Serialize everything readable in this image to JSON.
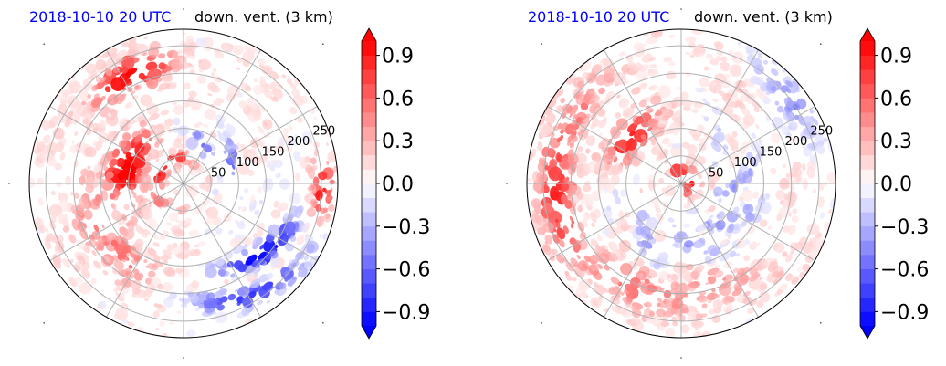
{
  "panels": [
    {
      "time_label": "2018-10-10 20 UTC",
      "variable_label": "down. vent. (3 km)",
      "pattern": "left"
    },
    {
      "time_label": "2018-10-10 20 UTC",
      "variable_label": "down. vent. (3 km)",
      "pattern": "right"
    }
  ],
  "chart_data": [
    {
      "type": "heatmap",
      "projection": "polar",
      "title": "2018-10-10 20 UTC down. vent. (3 km)",
      "radial_ticks": [
        50,
        100,
        150,
        200,
        250
      ],
      "radial_max": 280,
      "angular_gridlines_deg": [
        0,
        30,
        60,
        90,
        120,
        150,
        180,
        210,
        240,
        270,
        300,
        330
      ],
      "colorbar": {
        "ticks": [
          -0.9,
          -0.6,
          -0.3,
          0.0,
          0.3,
          0.6,
          0.9
        ],
        "tick_labels": [
          "−0.9",
          "−0.6",
          "−0.3",
          "0.0",
          "0.3",
          "0.6",
          "0.9"
        ],
        "range": [
          -1.0,
          1.0
        ],
        "extend": "both",
        "colormap": "bwr",
        "levels": 20
      }
    },
    {
      "type": "heatmap",
      "projection": "polar",
      "title": "2018-10-10 20 UTC down. vent. (3 km)",
      "radial_ticks": [
        50,
        100,
        150,
        200,
        250
      ],
      "radial_max": 280,
      "angular_gridlines_deg": [
        0,
        30,
        60,
        90,
        120,
        150,
        180,
        210,
        240,
        270,
        300,
        330
      ],
      "colorbar": {
        "ticks": [
          -0.9,
          -0.6,
          -0.3,
          0.0,
          0.3,
          0.6,
          0.9
        ],
        "tick_labels": [
          "−0.9",
          "−0.6",
          "−0.3",
          "0.0",
          "0.3",
          "0.6",
          "0.9"
        ],
        "range": [
          -1.0,
          1.0
        ],
        "extend": "both",
        "colormap": "bwr",
        "levels": 20
      }
    }
  ],
  "colors": {
    "positive_max": "#ff0000",
    "negative_max": "#0000ff",
    "neutral": "#ffffff",
    "grid": "#b0b0b0"
  }
}
